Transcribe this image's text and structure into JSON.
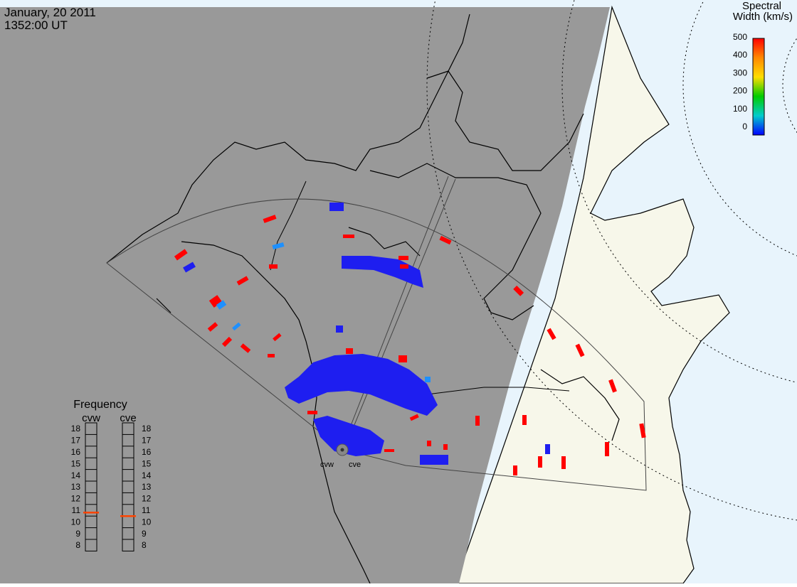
{
  "header": {
    "date": "January, 20 2011",
    "time": "1352:00 UT"
  },
  "colorbar": {
    "title_line1": "Spectral",
    "title_line2": "Width (km/s)",
    "ticks": [
      "500",
      "400",
      "300",
      "200",
      "100",
      "0"
    ],
    "colors": [
      "#ff0000",
      "#ff8800",
      "#ffdd00",
      "#00cc00",
      "#00cccc",
      "#0000ff"
    ]
  },
  "frequency": {
    "title": "Frequency",
    "radars": [
      {
        "label": "cvw",
        "value": 10.8
      },
      {
        "label": "cve",
        "value": 10.5
      }
    ],
    "scale": [
      "18",
      "17",
      "16",
      "15",
      "14",
      "13",
      "12",
      "11",
      "10",
      "9",
      "8"
    ],
    "marker_color": "#ff4400"
  },
  "stations": [
    "cvw",
    "cve"
  ],
  "colors": {
    "night": "#999999",
    "day_land": "#f7f7ea",
    "ocean": "#e8f4fc",
    "high": "#ff0000",
    "low": "#1e1ef0",
    "mid": "#1e90ff"
  }
}
